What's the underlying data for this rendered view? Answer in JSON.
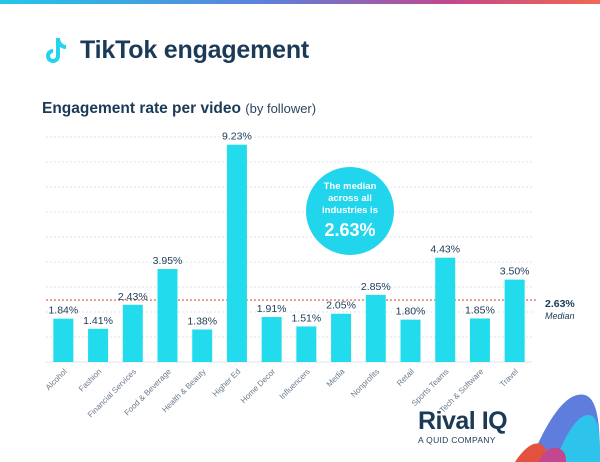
{
  "header": {
    "title": "TikTok engagement"
  },
  "chart_data": {
    "type": "bar",
    "title": "Engagement rate per video",
    "subtitle": "(by follower)",
    "categories": [
      "Alcohol",
      "Fashion",
      "Financial Services",
      "Food & Beverage",
      "Health & Beauty",
      "Higher Ed",
      "Home Decor",
      "Influencers",
      "Media",
      "Nonprofits",
      "Retail",
      "Sports Teams",
      "Tech & Software",
      "Travel"
    ],
    "values": [
      1.84,
      1.41,
      2.43,
      3.95,
      1.38,
      9.23,
      1.91,
      1.51,
      2.05,
      2.85,
      1.8,
      4.43,
      1.85,
      3.5
    ],
    "value_labels": [
      "1.84%",
      "1.41%",
      "2.43%",
      "3.95%",
      "1.38%",
      "9.23%",
      "1.91%",
      "1.51%",
      "2.05%",
      "2.85%",
      "1.80%",
      "4.43%",
      "1.85%",
      "3.50%"
    ],
    "ylim": [
      0,
      9.6
    ],
    "grid": true,
    "bar_color": "#22dced",
    "median": {
      "value": 2.63,
      "label": "2.63%",
      "caption": "Median",
      "color": "#e2523f"
    },
    "callout": {
      "text": "The median across all industries is",
      "value": "2.63%"
    }
  },
  "brand": {
    "name": "Rival IQ",
    "tagline": "A QUID COMPANY",
    "colors": {
      "navy": "#1b3a57",
      "cyan": "#22dced",
      "accent": "#e2523f"
    }
  }
}
